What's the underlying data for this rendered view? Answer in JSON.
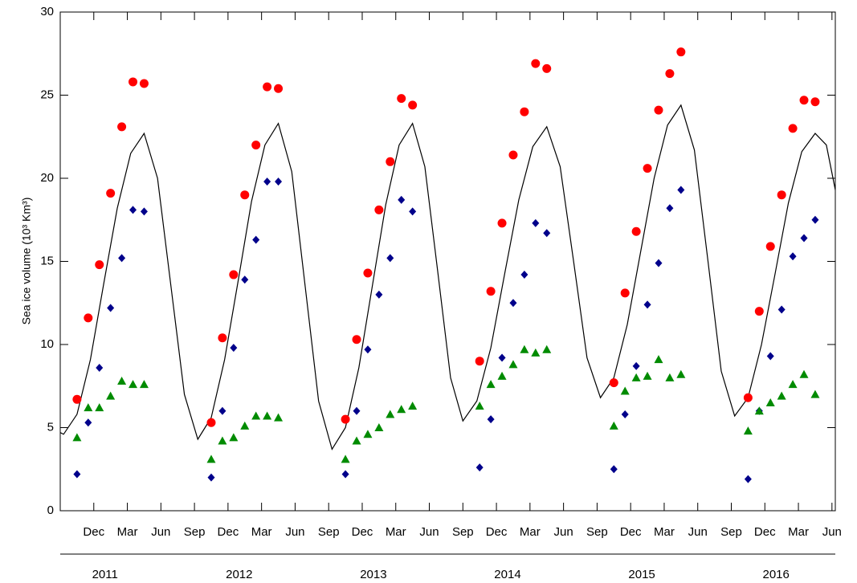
{
  "chart_data": {
    "type": "scatter",
    "y_label": "Sea ice volume (10³ Km³)",
    "xlim": [
      0,
      69.3
    ],
    "ylim": [
      0,
      30
    ],
    "yticks": [
      0,
      5,
      10,
      15,
      20,
      25,
      30
    ],
    "xticks": [
      {
        "value": 3,
        "label": "Dec"
      },
      {
        "value": 6,
        "label": "Mar"
      },
      {
        "value": 9,
        "label": "Jun"
      },
      {
        "value": 12,
        "label": "Sep"
      },
      {
        "value": 15,
        "label": "Dec"
      },
      {
        "value": 18,
        "label": "Mar"
      },
      {
        "value": 21,
        "label": "Jun"
      },
      {
        "value": 24,
        "label": "Sep"
      },
      {
        "value": 27,
        "label": "Dec"
      },
      {
        "value": 30,
        "label": "Mar"
      },
      {
        "value": 33,
        "label": "Jun"
      },
      {
        "value": 36,
        "label": "Sep"
      },
      {
        "value": 39,
        "label": "Dec"
      },
      {
        "value": 42,
        "label": "Mar"
      },
      {
        "value": 45,
        "label": "Jun"
      },
      {
        "value": 48,
        "label": "Sep"
      },
      {
        "value": 51,
        "label": "Dec"
      },
      {
        "value": 54,
        "label": "Mar"
      },
      {
        "value": 57,
        "label": "Jun"
      },
      {
        "value": 60,
        "label": "Sep"
      },
      {
        "value": 63,
        "label": "Dec"
      },
      {
        "value": 66,
        "label": "Mar"
      },
      {
        "value": 69,
        "label": "Jun"
      }
    ],
    "year_labels": [
      "2011",
      "2012",
      "2013",
      "2014",
      "2015",
      "2016"
    ],
    "x": [
      1.5,
      2.5,
      3.5,
      4.5,
      5.5,
      6.5,
      7.5,
      13.5,
      14.5,
      15.5,
      16.5,
      17.5,
      18.5,
      19.5,
      25.5,
      26.5,
      27.5,
      28.5,
      29.5,
      30.5,
      31.5,
      37.5,
      38.5,
      39.5,
      40.5,
      41.5,
      42.5,
      43.5,
      49.5,
      50.5,
      51.5,
      52.5,
      53.5,
      54.5,
      55.5,
      61.5,
      62.5,
      63.5,
      64.5,
      65.5,
      66.5,
      67.5
    ],
    "series": [
      {
        "type": "line",
        "color": "#000000",
        "x": [
          0,
          0.3,
          1.5,
          2.7,
          3.9,
          5.1,
          6.3,
          7.5,
          8.7,
          9.9,
          11.1,
          12.3,
          13.5,
          14.7,
          15.9,
          17.1,
          18.3,
          19.5,
          20.7,
          21.9,
          23.1,
          24.3,
          25.5,
          26.7,
          27.9,
          29.1,
          30.3,
          31.5,
          32.6,
          33.75,
          34.9,
          36.0,
          37.25,
          38.5,
          39.75,
          41.0,
          42.25,
          43.5,
          44.7,
          45.9,
          47.1,
          48.3,
          49.5,
          50.7,
          51.9,
          53.1,
          54.3,
          55.5,
          56.7,
          57.9,
          59.1,
          60.3,
          61.5,
          62.7,
          63.9,
          65.1,
          66.3,
          67.5,
          68.5,
          69.3
        ],
        "values": [
          4.7,
          4.6,
          5.8,
          9.1,
          13.7,
          18.2,
          21.5,
          22.7,
          20.0,
          13.5,
          7.0,
          4.3,
          5.6,
          9.1,
          13.8,
          18.6,
          22.0,
          23.3,
          20.4,
          13.5,
          6.6,
          3.7,
          5.0,
          8.6,
          13.5,
          18.4,
          22.0,
          23.3,
          20.7,
          14.4,
          8.0,
          5.4,
          6.6,
          9.8,
          14.3,
          18.7,
          21.9,
          23.1,
          20.7,
          15.0,
          9.2,
          6.8,
          8.0,
          11.2,
          15.6,
          20.0,
          23.2,
          24.4,
          21.7,
          15.1,
          8.4,
          5.7,
          6.8,
          10.0,
          14.2,
          18.5,
          21.6,
          22.7,
          22.0,
          19.3
        ]
      },
      {
        "type": "scatter",
        "marker": "circle",
        "color": "#ff0000",
        "values": [
          6.7,
          11.6,
          14.8,
          19.1,
          23.1,
          25.8,
          25.7,
          5.3,
          10.4,
          14.2,
          19.0,
          22.0,
          25.5,
          25.4,
          5.5,
          10.3,
          14.3,
          18.1,
          21.0,
          24.8,
          24.4,
          9.0,
          13.2,
          17.3,
          21.4,
          24.0,
          26.9,
          26.6,
          7.7,
          13.1,
          16.8,
          20.6,
          24.1,
          26.3,
          27.6,
          6.8,
          12.0,
          15.9,
          19.0,
          23.0,
          24.7,
          24.6
        ]
      },
      {
        "type": "scatter",
        "marker": "diamond",
        "color": "#00008b",
        "values": [
          2.2,
          5.3,
          8.6,
          12.2,
          15.2,
          18.1,
          18.0,
          2.0,
          6.0,
          9.8,
          13.9,
          16.3,
          19.8,
          19.8,
          2.2,
          6.0,
          9.7,
          13.0,
          15.2,
          18.7,
          18.0,
          2.6,
          5.5,
          9.2,
          12.5,
          14.2,
          17.3,
          16.7,
          2.5,
          5.8,
          8.7,
          12.4,
          14.9,
          18.2,
          19.3,
          1.9,
          6.0,
          9.3,
          12.1,
          15.3,
          16.4,
          17.5
        ]
      },
      {
        "type": "scatter",
        "marker": "triangle",
        "color": "#008b00",
        "values": [
          4.4,
          6.2,
          6.2,
          6.9,
          7.8,
          7.6,
          7.6,
          3.1,
          4.2,
          4.4,
          5.1,
          5.7,
          5.7,
          5.6,
          3.1,
          4.2,
          4.6,
          5.0,
          5.8,
          6.1,
          6.3,
          6.3,
          7.6,
          8.1,
          8.8,
          9.7,
          9.5,
          9.7,
          5.1,
          7.2,
          8.0,
          8.1,
          9.1,
          8.0,
          8.2,
          4.8,
          6.0,
          6.5,
          6.9,
          7.6,
          8.2,
          7.0
        ]
      }
    ]
  }
}
